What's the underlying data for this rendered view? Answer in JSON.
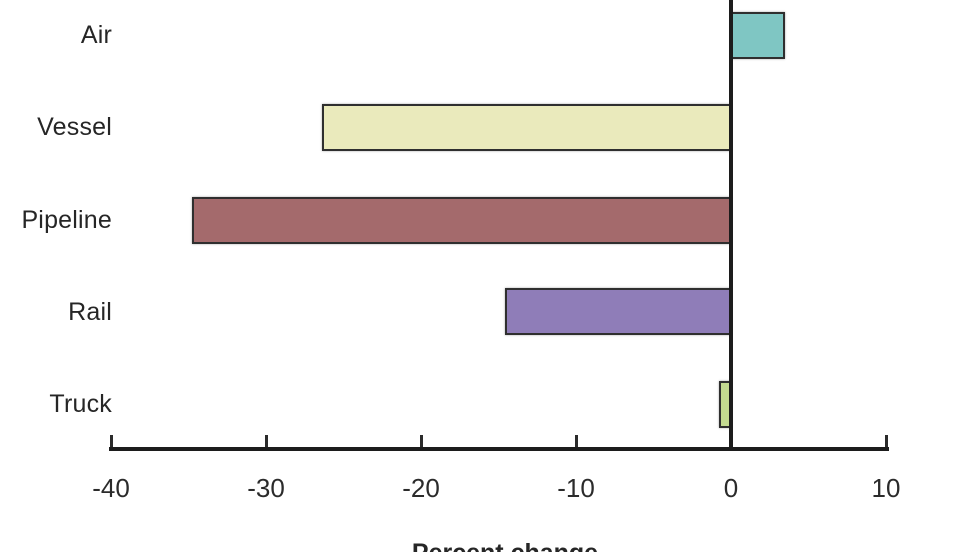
{
  "chart_data": {
    "type": "bar",
    "orientation": "horizontal",
    "title": "",
    "xlabel": "Percent change",
    "ylabel": "",
    "xlim": [
      -40,
      10
    ],
    "grid": false,
    "zero_line": true,
    "legend": "none",
    "categories": [
      "Air",
      "Vessel",
      "Pipeline",
      "Rail",
      "Truck"
    ],
    "values": [
      3.5,
      -26.4,
      -34.8,
      -14.6,
      -0.8
    ],
    "bars": [
      {
        "label": "Air",
        "value": 3.5,
        "color": "#7fc6c3"
      },
      {
        "label": "Vessel",
        "value": -26.4,
        "color": "#eaeabc"
      },
      {
        "label": "Pipeline",
        "value": -34.8,
        "color": "#a46a6c"
      },
      {
        "label": "Rail",
        "value": -14.6,
        "color": "#8f7db8"
      },
      {
        "label": "Truck",
        "value": -0.8,
        "color": "#c3da90"
      }
    ],
    "x_ticks": [
      -40,
      -30,
      -20,
      -10,
      0,
      10
    ],
    "x_tick_labels": [
      "-40",
      "-30",
      "-20",
      "-10",
      "0",
      "10"
    ],
    "colors": {
      "axis": "#1c1c1c",
      "bar_border": "#2f2f2f",
      "text": "#262626",
      "background": "#ffffff"
    }
  }
}
